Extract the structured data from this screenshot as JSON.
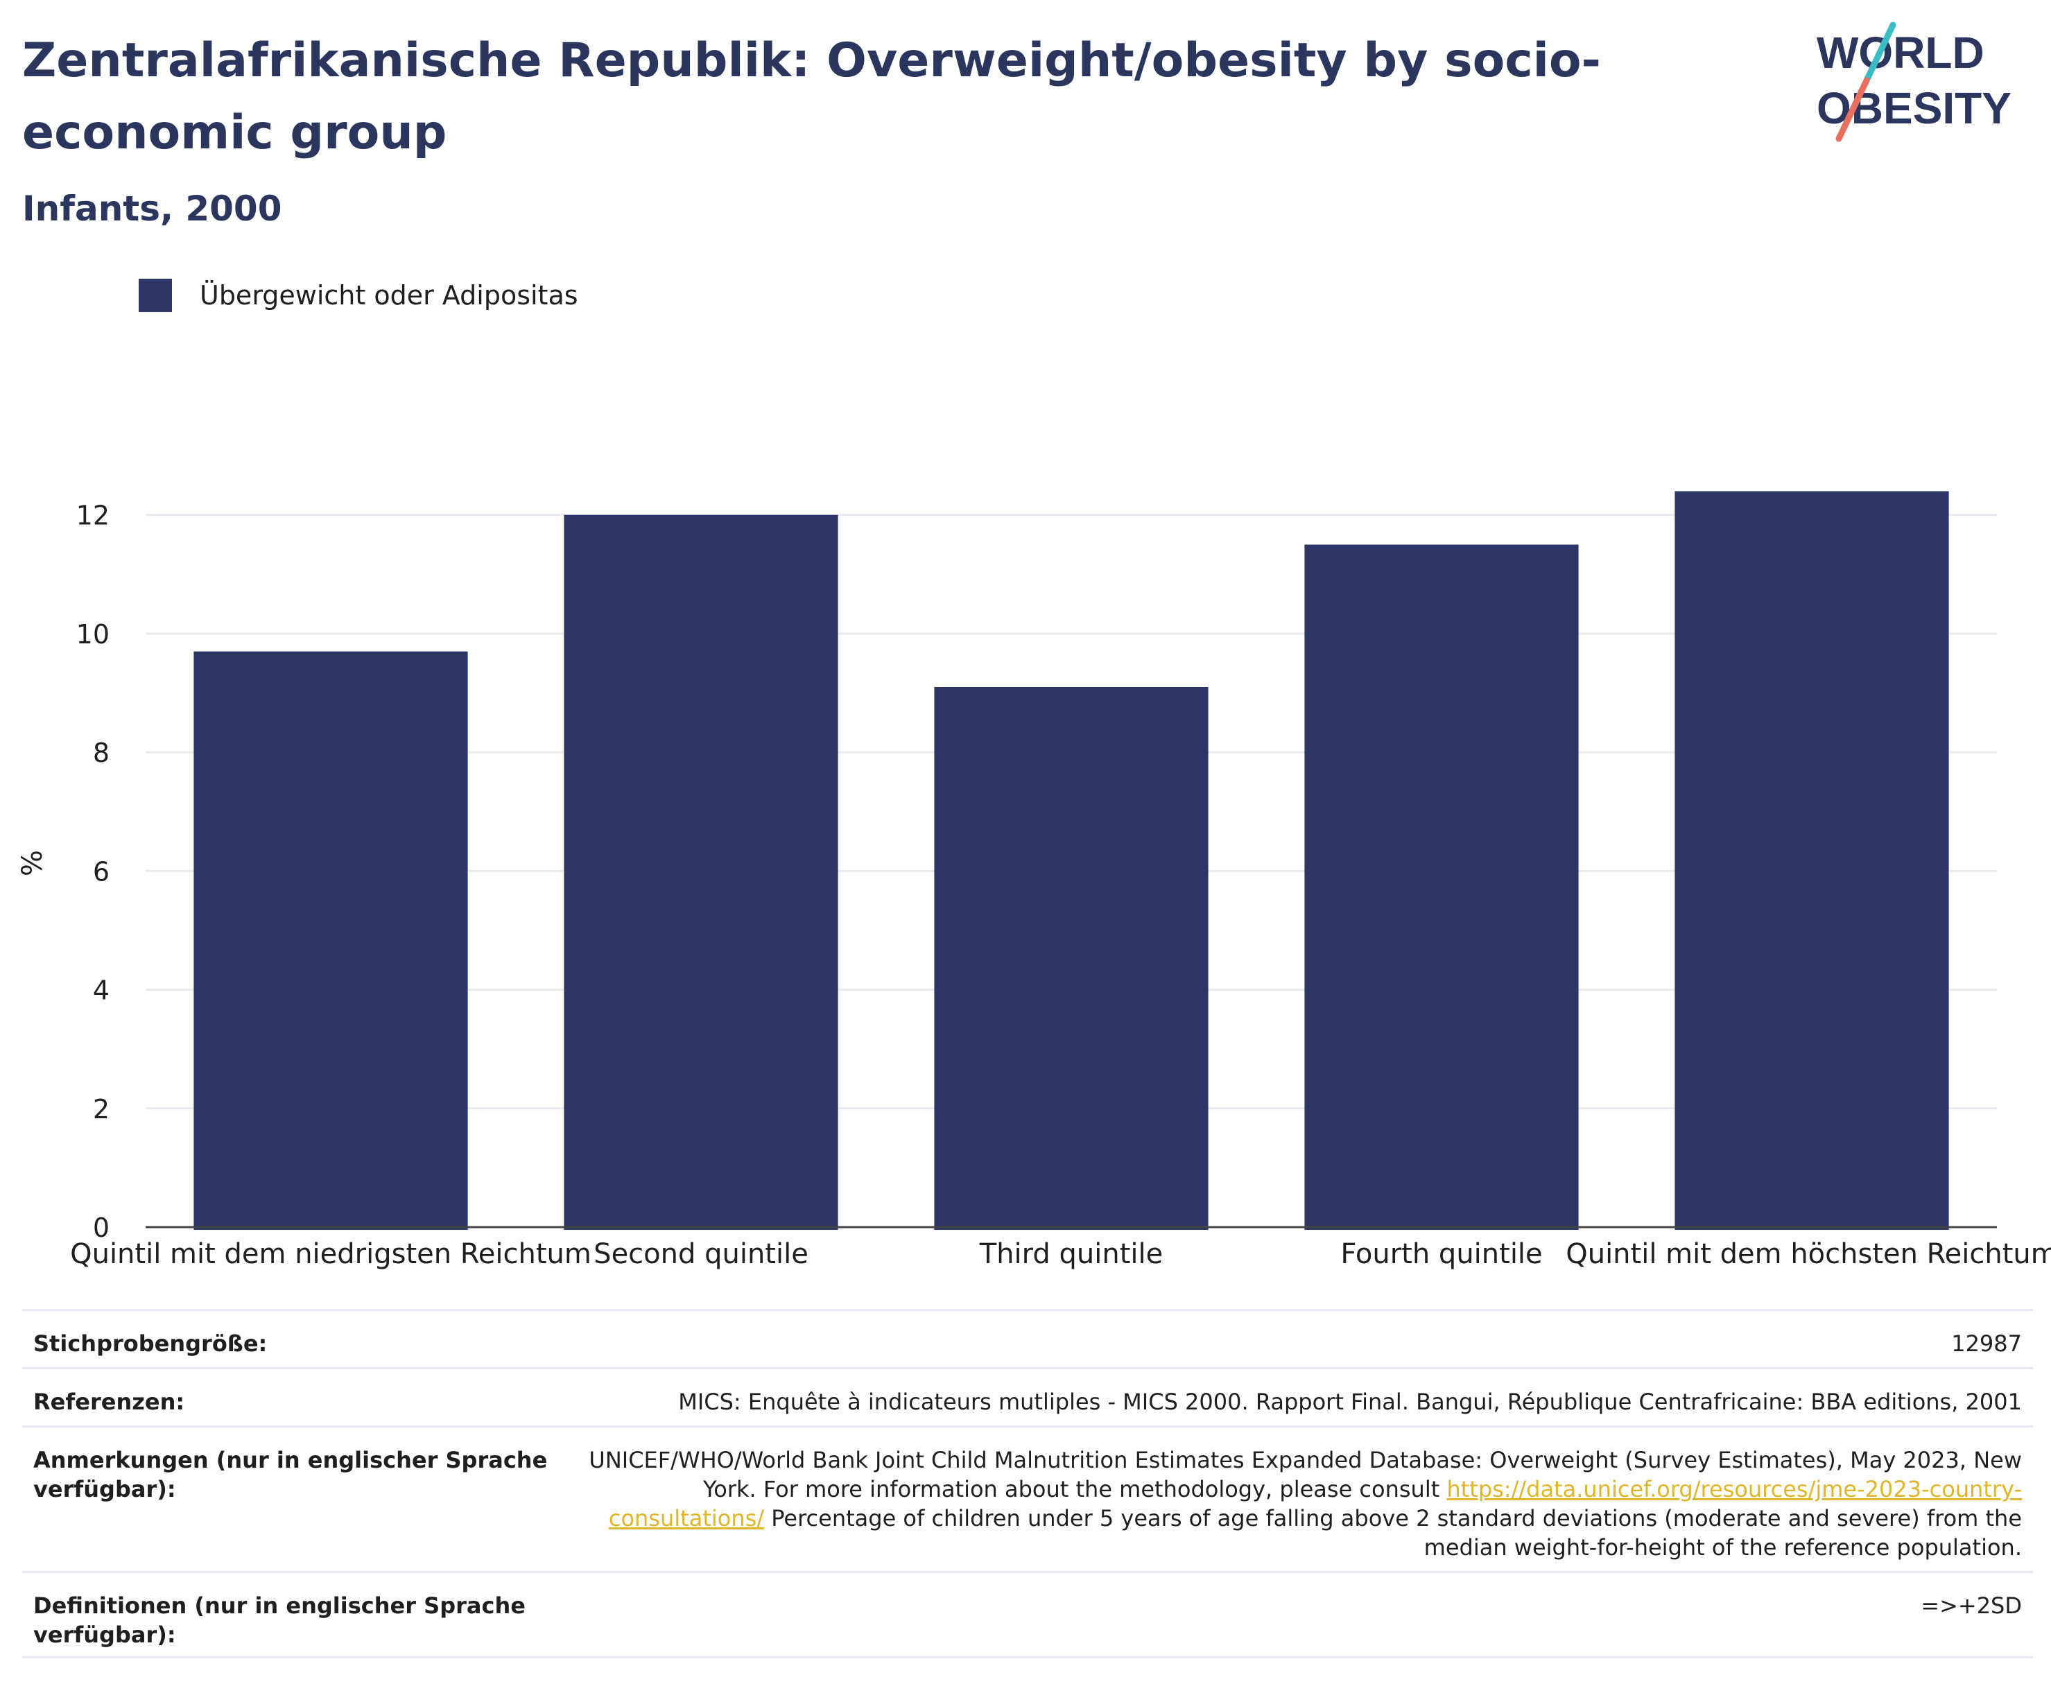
{
  "header": {
    "title": "Zentralafrikanische Republik: Overweight/obesity by socio-economic group",
    "subtitle": "Infants, 2000"
  },
  "logo": {
    "line1": "WORLD",
    "line2": "OBESITY"
  },
  "colors": {
    "bar": "#2b3664",
    "title": "#2b365f",
    "logo_teal": "#3bbcc4",
    "logo_coral": "#e8705e",
    "grid": "#e9eaef",
    "axis": "#444444"
  },
  "legend": {
    "items": [
      {
        "label": "Übergewicht oder Adipositas",
        "color": "#2b3664"
      }
    ]
  },
  "chart_data": {
    "type": "bar",
    "ylabel": "%",
    "ylim": [
      0,
      13.2
    ],
    "yticks": [
      0,
      2,
      4,
      6,
      8,
      10,
      12
    ],
    "grid": true,
    "legend_position": "top-left",
    "categories": [
      "Quintil mit dem niedrigsten Reichtum",
      "Second quintile",
      "Third quintile",
      "Fourth quintile",
      "Quintil mit dem höchsten Reichtum"
    ],
    "series": [
      {
        "name": "Übergewicht oder Adipositas",
        "values": [
          9.7,
          12.0,
          9.1,
          11.5,
          12.4
        ]
      }
    ]
  },
  "info": {
    "sample_label": "Stichprobengröße:",
    "sample_value": "12987",
    "references_label": "Referenzen:",
    "references_value": "MICS: Enquête à indicateurs mutliples - MICS 2000. Rapport Final. Bangui, République Centrafricaine: BBA editions, 2001",
    "notes_label": "Anmerkungen (nur in englischer Sprache verfügbar):",
    "notes_text_before": "UNICEF/WHO/World Bank Joint Child Malnutrition Estimates Expanded Database: Overweight (Survey Estimates), May 2023, New York. For more information about the methodology, please consult ",
    "notes_link": "https://data.unicef.org/resources/jme-2023-country-consultations/",
    "notes_text_after": " Percentage of children under 5 years of age falling above 2 standard deviations (moderate and severe) from the median weight-for-height of the reference population.",
    "definitions_label": "Definitionen (nur in englischer Sprache verfügbar):",
    "definitions_value": "=>+2SD"
  }
}
